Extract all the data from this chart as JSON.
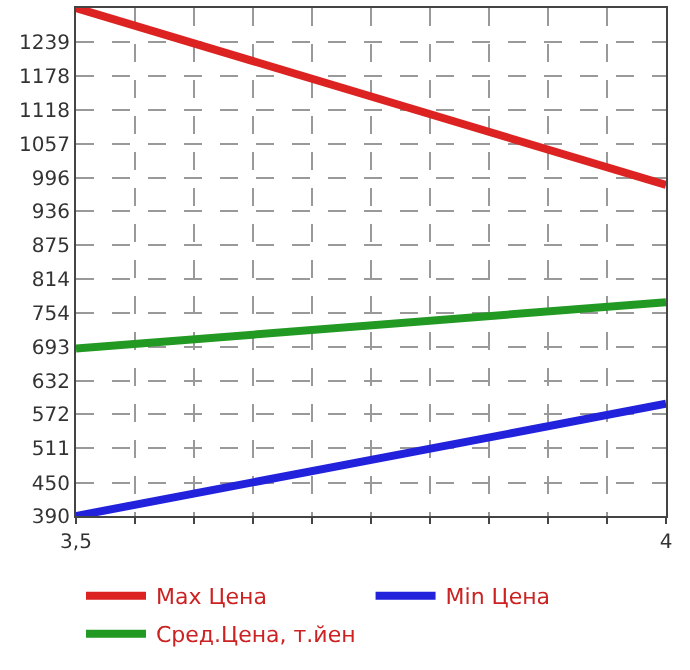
{
  "chart_data": {
    "type": "line",
    "x": [
      3.5,
      4
    ],
    "series": [
      {
        "name": "Max Цена",
        "color": "#dd2222",
        "values": [
          1300,
          983
        ]
      },
      {
        "name": "Min Цена",
        "color": "#2222dd",
        "values": [
          390,
          591
        ]
      },
      {
        "name": "Сред.Цена, т.йен",
        "color": "#229922",
        "values": [
          690,
          773
        ]
      }
    ],
    "xlim": [
      3.5,
      4
    ],
    "xticks": [
      {
        "value": 3.5,
        "label": "3,5"
      },
      {
        "value": 3.55,
        "label": null
      },
      {
        "value": 3.6,
        "label": null
      },
      {
        "value": 3.65,
        "label": null
      },
      {
        "value": 3.7,
        "label": null
      },
      {
        "value": 3.75,
        "label": null
      },
      {
        "value": 3.8,
        "label": null
      },
      {
        "value": 3.85,
        "label": null
      },
      {
        "value": 3.9,
        "label": null
      },
      {
        "value": 3.95,
        "label": null
      },
      {
        "value": 4,
        "label": "4"
      }
    ],
    "ylim": [
      390,
      1300
    ],
    "yticks": [
      390,
      450,
      511,
      572,
      632,
      693,
      754,
      814,
      875,
      936,
      996,
      1057,
      1118,
      1178,
      1239
    ],
    "grid": true,
    "legend": "bottom",
    "marker": "none",
    "line_style": "solid"
  }
}
